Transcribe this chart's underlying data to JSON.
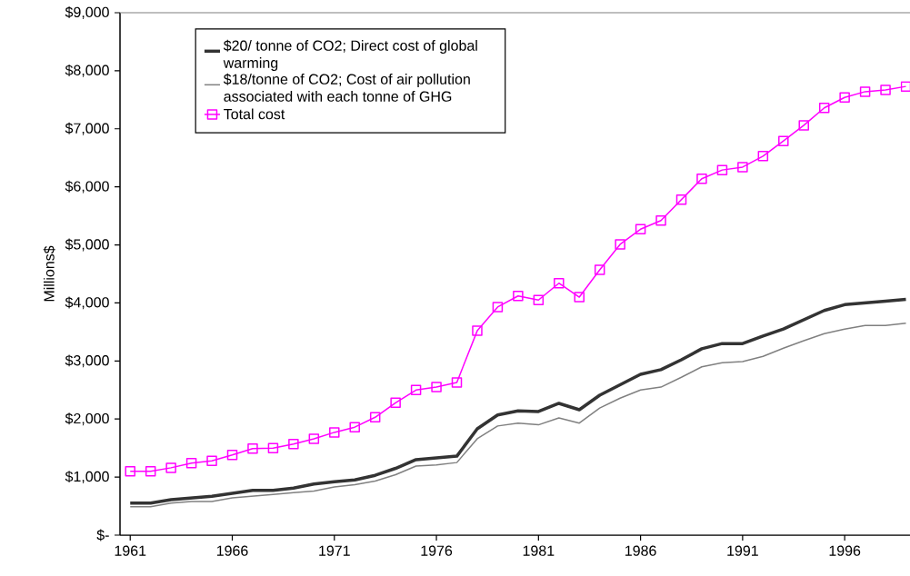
{
  "chart_data": {
    "type": "line",
    "ylabel": "Millions$",
    "x": [
      1961,
      1962,
      1963,
      1964,
      1965,
      1966,
      1967,
      1968,
      1969,
      1970,
      1971,
      1972,
      1973,
      1974,
      1975,
      1976,
      1977,
      1978,
      1979,
      1980,
      1981,
      1982,
      1983,
      1984,
      1985,
      1986,
      1987,
      1988,
      1989,
      1990,
      1991,
      1992,
      1993,
      1994,
      1995,
      1996,
      1997,
      1998,
      1999
    ],
    "series": [
      {
        "name": "$20/ tonne of CO2; Direct cost of global warming",
        "color": "#333333",
        "marker": "none",
        "values": [
          550,
          550,
          610,
          640,
          670,
          720,
          770,
          770,
          810,
          880,
          920,
          950,
          1030,
          1150,
          1300,
          1330,
          1360,
          1830,
          2070,
          2140,
          2130,
          2270,
          2160,
          2410,
          2590,
          2770,
          2850,
          3020,
          3210,
          3300,
          3300,
          3430,
          3550,
          3710,
          3870,
          3970,
          4000,
          4030,
          4060
        ]
      },
      {
        "name": "$18/tonne of CO2; Cost of air pollution associated with each tonne of GHG",
        "color": "#808080",
        "marker": "none",
        "values": [
          490,
          490,
          550,
          580,
          580,
          640,
          670,
          700,
          730,
          760,
          830,
          870,
          930,
          1040,
          1190,
          1210,
          1250,
          1660,
          1880,
          1930,
          1900,
          2020,
          1930,
          2190,
          2360,
          2500,
          2550,
          2720,
          2900,
          2970,
          2990,
          3080,
          3220,
          3350,
          3470,
          3550,
          3610,
          3610,
          3650
        ]
      },
      {
        "name": "Total cost",
        "color": "#ff00ff",
        "marker": "square",
        "values": [
          1100,
          1100,
          1160,
          1240,
          1280,
          1380,
          1490,
          1500,
          1570,
          1660,
          1770,
          1860,
          2030,
          2280,
          2500,
          2550,
          2630,
          3520,
          3930,
          4120,
          4050,
          4340,
          4100,
          4570,
          5010,
          5270,
          5420,
          5780,
          6140,
          6290,
          6340,
          6530,
          6790,
          7060,
          7360,
          7540,
          7640,
          7670,
          7730
        ]
      }
    ],
    "xlim": [
      1960.5,
      1999.2
    ],
    "xticks": [
      1961,
      1966,
      1971,
      1976,
      1981,
      1986,
      1991,
      1996
    ],
    "ylim": [
      0,
      9000
    ],
    "yticks": [
      {
        "value": 0,
        "label": "$-"
      },
      {
        "value": 1000,
        "label": "$1,000"
      },
      {
        "value": 2000,
        "label": "$2,000"
      },
      {
        "value": 3000,
        "label": "$3,000"
      },
      {
        "value": 4000,
        "label": "$4,000"
      },
      {
        "value": 5000,
        "label": "$5,000"
      },
      {
        "value": 6000,
        "label": "$6,000"
      },
      {
        "value": 7000,
        "label": "$7,000"
      },
      {
        "value": 8000,
        "label": "$8,000"
      },
      {
        "value": 9000,
        "label": "$9,000"
      }
    ],
    "grid": false,
    "legend": "top left",
    "line_style": "solid"
  }
}
